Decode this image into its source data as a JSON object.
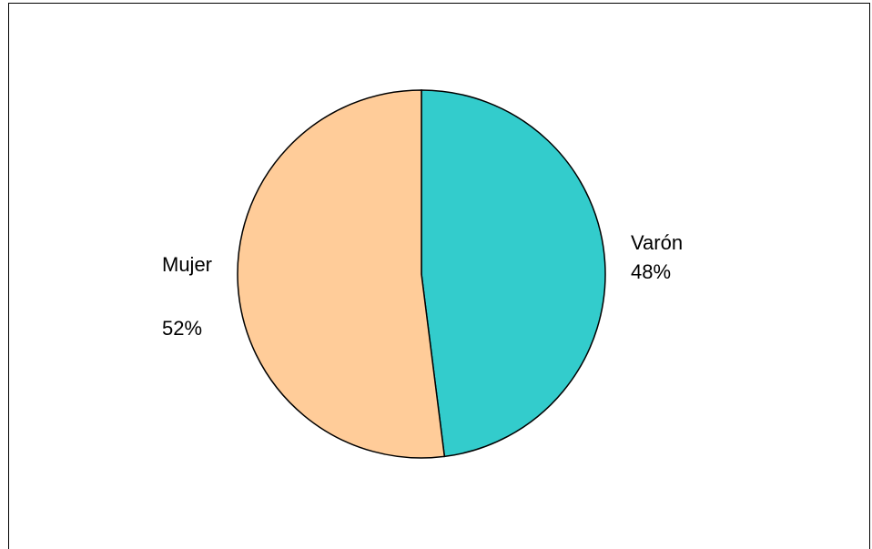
{
  "chart_data": {
    "type": "pie",
    "categories": [
      "Varón",
      "Mujer"
    ],
    "values": [
      48,
      52
    ],
    "value_labels": [
      "48%",
      "52%"
    ],
    "colors": [
      "#33cccc",
      "#ffcc99"
    ]
  }
}
